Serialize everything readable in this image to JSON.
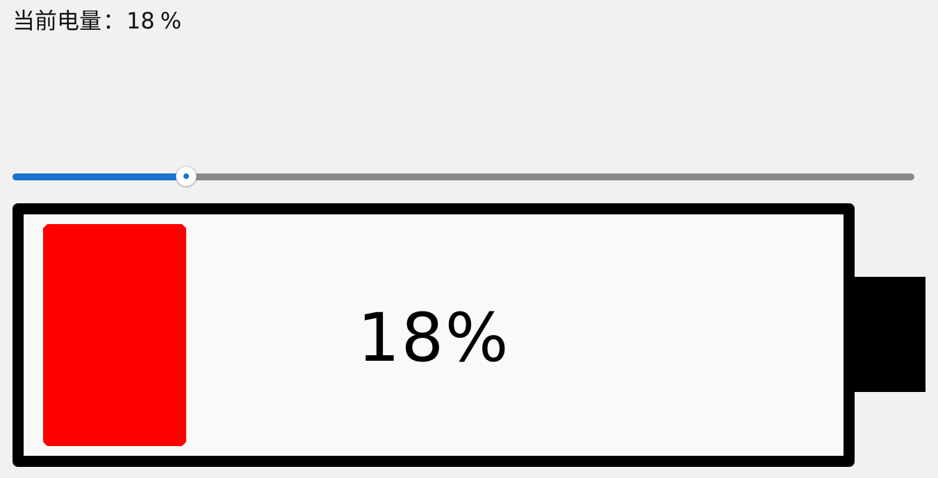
{
  "status": {
    "label": "当前电量",
    "separator": "：",
    "value": "18",
    "unit": "%"
  },
  "slider": {
    "value": 18,
    "min": 0,
    "max": 100,
    "fill_color": "#1a73d0",
    "track_color": "#8a8a8a"
  },
  "battery": {
    "level_percent": 18,
    "display_text": "18%",
    "level_color": "#ff0000",
    "frame_color": "#000000"
  }
}
